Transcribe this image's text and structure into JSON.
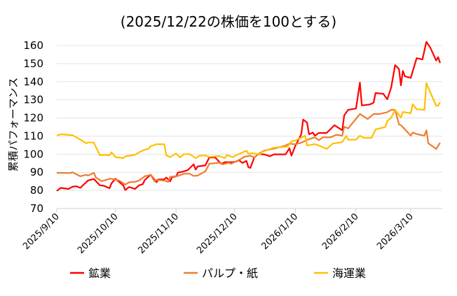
{
  "chart_data": {
    "type": "line",
    "title": "(2025/12/22の株価を100とする)",
    "xlabel": "",
    "ylabel": "累積パフォーマンス",
    "ylim": [
      70,
      160
    ],
    "yticks": [
      70,
      80,
      90,
      100,
      110,
      120,
      130,
      140,
      150,
      160
    ],
    "xlim": [
      "2025-09-10",
      "2026-03-26"
    ],
    "xticks": [
      {
        "date": "2025-09-10",
        "label": "2025/9/10"
      },
      {
        "date": "2025-10-10",
        "label": "2025/10/10"
      },
      {
        "date": "2025-11-10",
        "label": "2025/11/10"
      },
      {
        "date": "2025-12-10",
        "label": "2025/12/10"
      },
      {
        "date": "2026-01-10",
        "label": "2026/1/10"
      },
      {
        "date": "2026-02-10",
        "label": "2026/2/10"
      },
      {
        "date": "2026-03-10",
        "label": "2026/3/10"
      }
    ],
    "grid": "horizontal",
    "legend": "bottom",
    "series": [
      {
        "name": "鉱業",
        "color": "#ff0000",
        "points": [
          [
            "2025-09-10",
            79.7
          ],
          [
            "2025-09-12",
            81.4
          ],
          [
            "2025-09-16",
            80.8
          ],
          [
            "2025-09-18",
            82
          ],
          [
            "2025-09-20",
            82.3
          ],
          [
            "2025-09-22",
            81.4
          ],
          [
            "2025-09-26",
            85.5
          ],
          [
            "2025-09-29",
            86.3
          ],
          [
            "2025-10-02",
            82.8
          ],
          [
            "2025-10-04",
            82.6
          ],
          [
            "2025-10-07",
            81.2
          ],
          [
            "2025-10-08",
            83.9
          ],
          [
            "2025-10-10",
            86.4
          ],
          [
            "2025-10-14",
            82.8
          ],
          [
            "2025-10-15",
            80.2
          ],
          [
            "2025-10-17",
            81.9
          ],
          [
            "2025-10-20",
            80.8
          ],
          [
            "2025-10-22",
            82.8
          ],
          [
            "2025-10-24",
            83.5
          ],
          [
            "2025-10-25",
            85.8
          ],
          [
            "2025-10-28",
            88.6
          ],
          [
            "2025-10-31",
            84.5
          ],
          [
            "2025-11-01",
            86.1
          ],
          [
            "2025-11-04",
            86.1
          ],
          [
            "2025-11-05",
            87.1
          ],
          [
            "2025-11-07",
            85
          ],
          [
            "2025-11-08",
            87.4
          ],
          [
            "2025-11-10",
            87.7
          ],
          [
            "2025-11-11",
            89.9
          ],
          [
            "2025-11-13",
            90.2
          ],
          [
            "2025-11-16",
            91.2
          ],
          [
            "2025-11-19",
            94.4
          ],
          [
            "2025-11-20",
            91.5
          ],
          [
            "2025-11-21",
            93.2
          ],
          [
            "2025-11-25",
            93.8
          ],
          [
            "2025-11-27",
            98.2
          ],
          [
            "2025-11-30",
            98.2
          ],
          [
            "2025-12-03",
            94.7
          ],
          [
            "2025-12-05",
            95.6
          ],
          [
            "2025-12-09",
            95.6
          ],
          [
            "2025-12-11",
            96
          ],
          [
            "2025-12-12",
            96.7
          ],
          [
            "2025-12-14",
            95.2
          ],
          [
            "2025-12-16",
            96.3
          ],
          [
            "2025-12-17",
            92.8
          ],
          [
            "2025-12-18",
            92.4
          ],
          [
            "2025-12-20",
            98.2
          ],
          [
            "2025-12-22",
            100
          ],
          [
            "2025-12-25",
            99.9
          ],
          [
            "2025-12-28",
            98.9
          ],
          [
            "2025-12-30",
            99.9
          ],
          [
            "2026-01-05",
            99.9
          ],
          [
            "2026-01-07",
            103.3
          ],
          [
            "2026-01-08",
            99.2
          ],
          [
            "2026-01-10",
            104.6
          ],
          [
            "2026-01-13",
            111
          ],
          [
            "2026-01-14",
            119.1
          ],
          [
            "2026-01-16",
            117.4
          ],
          [
            "2026-01-17",
            111
          ],
          [
            "2026-01-19",
            111.9
          ],
          [
            "2026-01-20",
            110.2
          ],
          [
            "2026-01-22",
            111.7
          ],
          [
            "2026-01-26",
            111.7
          ],
          [
            "2026-01-30",
            116
          ],
          [
            "2026-02-03",
            113.2
          ],
          [
            "2026-02-04",
            121.4
          ],
          [
            "2026-02-06",
            124.5
          ],
          [
            "2026-02-10",
            125.2
          ],
          [
            "2026-02-12",
            139.5
          ],
          [
            "2026-02-13",
            126.9
          ],
          [
            "2026-02-17",
            127.4
          ],
          [
            "2026-02-19",
            128.4
          ],
          [
            "2026-02-20",
            133.8
          ],
          [
            "2026-02-24",
            133.3
          ],
          [
            "2026-02-26",
            130.3
          ],
          [
            "2026-02-28",
            136.8
          ],
          [
            "2026-03-02",
            149.2
          ],
          [
            "2026-03-04",
            146.9
          ],
          [
            "2026-03-05",
            138
          ],
          [
            "2026-03-06",
            146
          ],
          [
            "2026-03-07",
            143
          ],
          [
            "2026-03-10",
            142.1
          ],
          [
            "2026-03-13",
            153
          ],
          [
            "2026-03-16",
            152.3
          ],
          [
            "2026-03-18",
            162
          ],
          [
            "2026-03-20",
            158.8
          ],
          [
            "2026-03-23",
            151.7
          ],
          [
            "2026-03-24",
            153.6
          ],
          [
            "2026-03-25",
            150.4
          ]
        ]
      },
      {
        "name": "パルプ・紙",
        "color": "#ed7d31",
        "points": [
          [
            "2025-09-10",
            89.7
          ],
          [
            "2025-09-17",
            89.6
          ],
          [
            "2025-09-18",
            90
          ],
          [
            "2025-09-22",
            87.8
          ],
          [
            "2025-09-25",
            88.6
          ],
          [
            "2025-09-26",
            88.2
          ],
          [
            "2025-09-29",
            89.7
          ],
          [
            "2025-09-30",
            87.1
          ],
          [
            "2025-10-03",
            85.1
          ],
          [
            "2025-10-07",
            86.4
          ],
          [
            "2025-10-08",
            86.4
          ],
          [
            "2025-10-12",
            85.4
          ],
          [
            "2025-10-15",
            83.2
          ],
          [
            "2025-10-17",
            84.5
          ],
          [
            "2025-10-20",
            84.7
          ],
          [
            "2025-10-22",
            85.4
          ],
          [
            "2025-10-25",
            87.8
          ],
          [
            "2025-10-28",
            88.6
          ],
          [
            "2025-10-30",
            85
          ],
          [
            "2025-10-31",
            85.8
          ],
          [
            "2025-11-04",
            85.4
          ],
          [
            "2025-11-06",
            84.7
          ],
          [
            "2025-11-07",
            87.5
          ],
          [
            "2025-11-11",
            88
          ],
          [
            "2025-11-14",
            89.2
          ],
          [
            "2025-11-17",
            89.2
          ],
          [
            "2025-11-19",
            88
          ],
          [
            "2025-11-21",
            88.2
          ],
          [
            "2025-11-25",
            90.5
          ],
          [
            "2025-11-27",
            94.7
          ],
          [
            "2025-12-02",
            95.3
          ],
          [
            "2025-12-04",
            94.4
          ],
          [
            "2025-12-07",
            95.3
          ],
          [
            "2025-12-08",
            94.7
          ],
          [
            "2025-12-12",
            96.7
          ],
          [
            "2025-12-15",
            98.6
          ],
          [
            "2025-12-18",
            99.2
          ],
          [
            "2025-12-20",
            98.2
          ],
          [
            "2025-12-22",
            100
          ],
          [
            "2025-12-25",
            102
          ],
          [
            "2025-12-31",
            103.3
          ],
          [
            "2026-01-05",
            104.8
          ],
          [
            "2026-01-07",
            105.8
          ],
          [
            "2026-01-10",
            105.5
          ],
          [
            "2026-01-13",
            106.3
          ],
          [
            "2026-01-17",
            108.3
          ],
          [
            "2026-01-20",
            109.3
          ],
          [
            "2026-01-22",
            107.7
          ],
          [
            "2026-01-24",
            109.3
          ],
          [
            "2026-01-28",
            109.3
          ],
          [
            "2026-01-31",
            110.7
          ],
          [
            "2026-02-03",
            110.2
          ],
          [
            "2026-02-04",
            115.2
          ],
          [
            "2026-02-06",
            114.2
          ],
          [
            "2026-02-12",
            122.2
          ],
          [
            "2026-02-16",
            119.4
          ],
          [
            "2026-02-19",
            122.2
          ],
          [
            "2026-02-22",
            122.2
          ],
          [
            "2026-02-26",
            123.2
          ],
          [
            "2026-02-28",
            124.5
          ],
          [
            "2026-03-02",
            124.5
          ],
          [
            "2026-03-04",
            116.4
          ],
          [
            "2026-03-05",
            116.1
          ],
          [
            "2026-03-10",
            110.2
          ],
          [
            "2026-03-11",
            112
          ],
          [
            "2026-03-13",
            111.1
          ],
          [
            "2026-03-17",
            110.2
          ],
          [
            "2026-03-18",
            113.2
          ],
          [
            "2026-03-19",
            106
          ],
          [
            "2026-03-23",
            102.9
          ],
          [
            "2026-03-25",
            106.3
          ]
        ]
      },
      {
        "name": "海運業",
        "color": "#ffc000",
        "points": [
          [
            "2025-09-10",
            110.2
          ],
          [
            "2025-09-12",
            111
          ],
          [
            "2025-09-18",
            110.5
          ],
          [
            "2025-09-21",
            108.7
          ],
          [
            "2025-09-25",
            106
          ],
          [
            "2025-09-26",
            106.5
          ],
          [
            "2025-09-29",
            106.4
          ],
          [
            "2025-10-02",
            99.4
          ],
          [
            "2025-10-04",
            99.6
          ],
          [
            "2025-10-07",
            99.4
          ],
          [
            "2025-10-08",
            101
          ],
          [
            "2025-10-10",
            98.4
          ],
          [
            "2025-10-14",
            97.8
          ],
          [
            "2025-10-15",
            98.8
          ],
          [
            "2025-10-20",
            99.6
          ],
          [
            "2025-10-22",
            101
          ],
          [
            "2025-10-25",
            102.5
          ],
          [
            "2025-10-27",
            103
          ],
          [
            "2025-10-28",
            104.4
          ],
          [
            "2025-10-31",
            105.5
          ],
          [
            "2025-11-04",
            105.5
          ],
          [
            "2025-11-05",
            99.4
          ],
          [
            "2025-11-07",
            98.4
          ],
          [
            "2025-11-10",
            100.4
          ],
          [
            "2025-11-12",
            98.2
          ],
          [
            "2025-11-14",
            100
          ],
          [
            "2025-11-17",
            100
          ],
          [
            "2025-11-20",
            97.8
          ],
          [
            "2025-11-22",
            99.2
          ],
          [
            "2025-11-25",
            99.2
          ],
          [
            "2025-11-27",
            98.5
          ],
          [
            "2025-12-02",
            99
          ],
          [
            "2025-12-05",
            97.8
          ],
          [
            "2025-12-06",
            99.5
          ],
          [
            "2025-12-09",
            98.4
          ],
          [
            "2025-12-12",
            100
          ],
          [
            "2025-12-16",
            102
          ],
          [
            "2025-12-17",
            100.2
          ],
          [
            "2025-12-19",
            100.6
          ],
          [
            "2025-12-22",
            100
          ],
          [
            "2025-12-23",
            99.8
          ],
          [
            "2025-12-24",
            101.3
          ],
          [
            "2025-12-30",
            103.6
          ],
          [
            "2026-01-06",
            104.2
          ],
          [
            "2026-01-08",
            107.1
          ],
          [
            "2026-01-10",
            107.5
          ],
          [
            "2026-01-15",
            110.2
          ],
          [
            "2026-01-16",
            104.8
          ],
          [
            "2026-01-20",
            105.5
          ],
          [
            "2026-01-22",
            104.8
          ],
          [
            "2026-01-26",
            102.9
          ],
          [
            "2026-01-29",
            105.8
          ],
          [
            "2026-02-03",
            106.7
          ],
          [
            "2026-02-05",
            110
          ],
          [
            "2026-02-06",
            108
          ],
          [
            "2026-02-10",
            108
          ],
          [
            "2026-02-12",
            110.2
          ],
          [
            "2026-02-14",
            109
          ],
          [
            "2026-02-18",
            109
          ],
          [
            "2026-02-20",
            113.7
          ],
          [
            "2026-02-25",
            115
          ],
          [
            "2026-02-26",
            118.3
          ],
          [
            "2026-02-28",
            120.2
          ],
          [
            "2026-03-02",
            124.5
          ],
          [
            "2026-03-05",
            120.2
          ],
          [
            "2026-03-06",
            123.3
          ],
          [
            "2026-03-10",
            122.6
          ],
          [
            "2026-03-11",
            127.6
          ],
          [
            "2026-03-13",
            124.8
          ],
          [
            "2026-03-17",
            124.5
          ],
          [
            "2026-03-18",
            139.2
          ],
          [
            "2026-03-20",
            134.1
          ],
          [
            "2026-03-23",
            126.8
          ],
          [
            "2026-03-24",
            126.8
          ],
          [
            "2026-03-25",
            128.7
          ]
        ]
      }
    ]
  }
}
